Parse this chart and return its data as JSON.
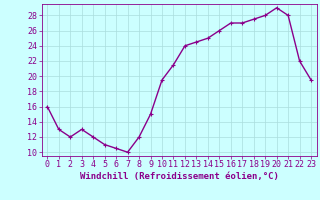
{
  "x": [
    0,
    1,
    2,
    3,
    4,
    5,
    6,
    7,
    8,
    9,
    10,
    11,
    12,
    13,
    14,
    15,
    16,
    17,
    18,
    19,
    20,
    21,
    22,
    23
  ],
  "y": [
    16,
    13,
    12,
    13,
    12,
    11,
    10.5,
    10,
    12,
    15,
    19.5,
    21.5,
    24,
    24.5,
    25,
    26,
    27,
    27,
    27.5,
    28,
    29,
    28,
    22,
    19.5
  ],
  "line_color": "#8B008B",
  "marker_color": "#8B008B",
  "bg_color": "#CCFFFF",
  "grid_color": "#AADDDD",
  "xlabel": "Windchill (Refroidissement éolien,°C)",
  "ylabel_ticks": [
    10,
    12,
    14,
    16,
    18,
    20,
    22,
    24,
    26,
    28
  ],
  "xlim": [
    -0.5,
    23.5
  ],
  "ylim": [
    9.5,
    29.5
  ],
  "xticks": [
    0,
    1,
    2,
    3,
    4,
    5,
    6,
    7,
    8,
    9,
    10,
    11,
    12,
    13,
    14,
    15,
    16,
    17,
    18,
    19,
    20,
    21,
    22,
    23
  ],
  "xlabel_fontsize": 6.5,
  "tick_fontsize": 6,
  "line_width": 1.0,
  "marker_size": 2.5
}
